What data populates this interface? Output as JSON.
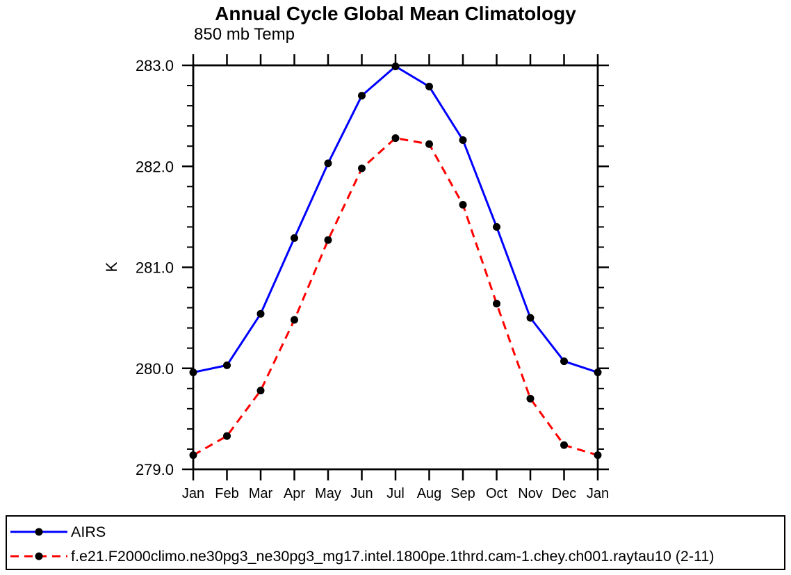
{
  "title": "Annual Cycle Global Mean Climatology",
  "subtitle": "850 mb Temp",
  "chart_data": {
    "type": "line",
    "x": [
      "Jan",
      "Feb",
      "Mar",
      "Apr",
      "May",
      "Jun",
      "Jul",
      "Aug",
      "Sep",
      "Oct",
      "Nov",
      "Dec",
      "Jan"
    ],
    "xlabel": "",
    "ylabel": "K",
    "ylim": [
      279.0,
      283.0
    ],
    "yticks": [
      283.0,
      282.0,
      281.0,
      280.0,
      279.0
    ],
    "ytick_labels": [
      "283.0",
      "282.0",
      "281.0",
      "280.0",
      "279.0"
    ],
    "minor_tick_interval": 0.2,
    "grid": false,
    "legend_position": "bottom",
    "series": [
      {
        "name": "AIRS",
        "color": "#0000ff",
        "line_style": "solid",
        "marker": "filled-circle",
        "marker_color": "#000000",
        "values": [
          279.96,
          280.03,
          280.54,
          281.29,
          282.03,
          282.7,
          282.99,
          282.79,
          282.26,
          281.4,
          280.5,
          280.07,
          279.96
        ]
      },
      {
        "name": "f.e21.F2000climo.ne30pg3_ne30pg3_mg17.intel.1800pe.1thrd.cam-1.chey.ch001.raytau10 (2-11)",
        "color": "#ff0000",
        "line_style": "dashed",
        "marker": "filled-circle",
        "marker_color": "#000000",
        "values": [
          279.14,
          279.33,
          279.78,
          280.48,
          281.27,
          281.98,
          282.28,
          282.22,
          281.62,
          280.64,
          279.7,
          279.24,
          279.14
        ]
      }
    ]
  },
  "colors": {
    "axis": "#000000",
    "background": "#ffffff"
  }
}
